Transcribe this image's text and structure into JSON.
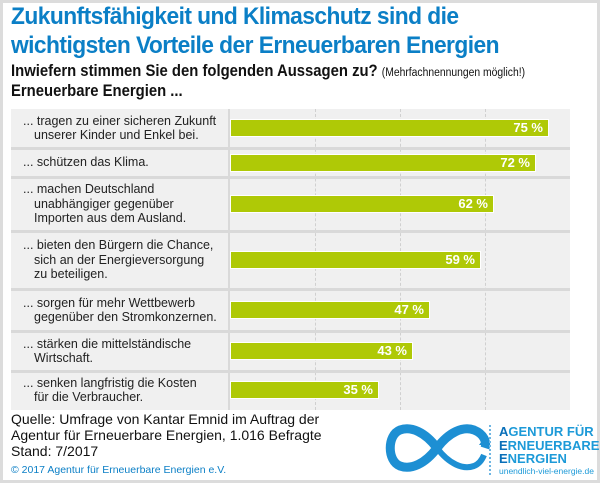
{
  "title_lines": [
    "Zukunftsfähigkeit und Klimaschutz sind die",
    "wichtigsten Vorteile der Erneuerbaren Energien"
  ],
  "subtitle": "Inwiefern stimmen Sie den folgenden Aussagen zu?",
  "subtitle_note": "(Mehrfachnennungen möglich!)",
  "lead": "Erneuerbare Energien ...",
  "colors": {
    "title": "#0b7fc6",
    "bar": "#afc906",
    "panel": "#f0f0f0",
    "logo_blue": "#1d9ad8"
  },
  "chart_data": {
    "type": "bar",
    "orientation": "horizontal",
    "title": "Zukunftsfähigkeit und Klimaschutz sind die wichtigsten Vorteile der Erneuerbaren Energien",
    "xlabel": "",
    "ylabel": "",
    "xlim": [
      0,
      80
    ],
    "grid_x": [
      20,
      40,
      60
    ],
    "grid": true,
    "unit": "%",
    "categories": [
      [
        "... tragen zu einer sicheren Zukunft",
        "unserer Kinder und Enkel bei."
      ],
      [
        "... schützen das Klima."
      ],
      [
        "... machen Deutschland",
        "unabhängiger gegenüber",
        "Importen aus dem Ausland."
      ],
      [
        "... bieten den Bürgern die Chance,",
        "sich an der Energieversorgung",
        "zu beteiligen."
      ],
      [
        "... sorgen für mehr Wettbewerb",
        "gegenüber den Stromkonzernen."
      ],
      [
        "... stärken die mittelständische",
        "Wirtschaft."
      ],
      [
        "... senken langfristig die Kosten",
        "für die Verbraucher."
      ]
    ],
    "values": [
      75,
      72,
      62,
      59,
      47,
      43,
      35
    ],
    "value_labels": [
      "75 %",
      "72 %",
      "62 %",
      "59 %",
      "47 %",
      "43 %",
      "35 %"
    ]
  },
  "footer": {
    "source_lines": [
      "Quelle: Umfrage von Kantar Emnid im Auftrag der",
      "Agentur für Erneuerbare Energien, 1.016 Befragte",
      "Stand: 7/2017"
    ],
    "copyright": "© 2017 Agentur für Erneuerbare Energien e.V."
  },
  "logo": {
    "icon": "infinity-icon",
    "lines": [
      {
        "cap": "A",
        "rest": "GENTUR FÜR"
      },
      {
        "cap": "E",
        "rest": "RNEUERBARE"
      },
      {
        "cap": "E",
        "rest": "NERGIEN"
      }
    ],
    "url": "unendlich-viel-energie.de"
  }
}
